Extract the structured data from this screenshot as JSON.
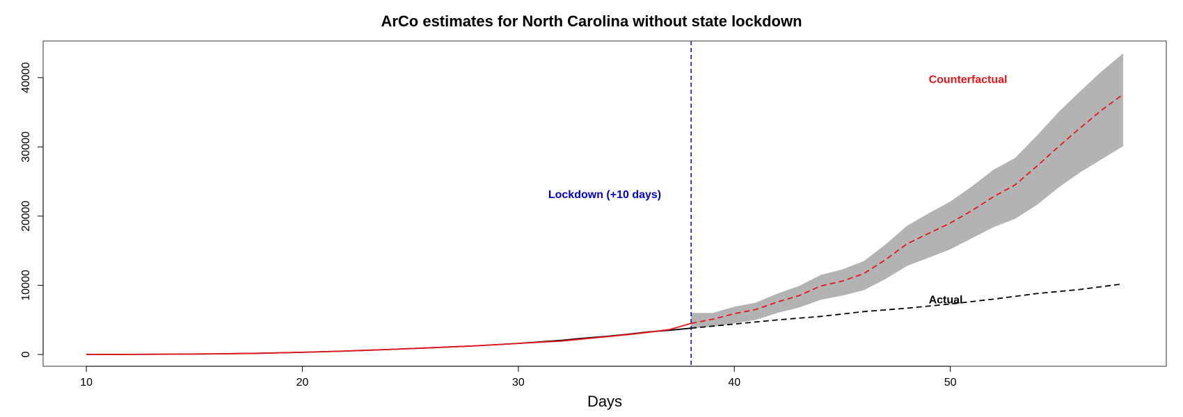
{
  "chart_data": {
    "type": "line",
    "title": "ArCo estimates for North Carolina without state lockdown",
    "xlabel": "Days",
    "ylabel": "",
    "xlim": [
      8,
      60
    ],
    "ylim": [
      -1700,
      45300
    ],
    "xticks": [
      10,
      20,
      30,
      40,
      50
    ],
    "yticks": [
      0,
      10000,
      20000,
      30000,
      40000
    ],
    "grid": false,
    "lockdown_day": 38,
    "colors": {
      "actual": "#000000",
      "counterfactual": "#e8141b",
      "band": "#b3b3b3",
      "lockdown": "#0000cc"
    },
    "series": [
      {
        "name": "Actual (pre-lockdown)",
        "style": "solid",
        "color": "#000000",
        "x": [
          10,
          12,
          14,
          16,
          18,
          20,
          22,
          24,
          26,
          28,
          30,
          32,
          33,
          34,
          35,
          36,
          37,
          38
        ],
        "y": [
          0,
          20,
          50,
          100,
          180,
          320,
          500,
          720,
          980,
          1250,
          1600,
          2050,
          2350,
          2600,
          2900,
          3250,
          3500,
          3800
        ]
      },
      {
        "name": "Counterfactual (pre-lockdown fit)",
        "style": "solid",
        "color": "#e8141b",
        "x": [
          10,
          12,
          14,
          16,
          18,
          20,
          22,
          24,
          26,
          28,
          30,
          32,
          33,
          34,
          35,
          36,
          37,
          38
        ],
        "y": [
          0,
          20,
          50,
          100,
          180,
          320,
          500,
          720,
          980,
          1250,
          1600,
          1950,
          2250,
          2550,
          2850,
          3200,
          3600,
          4500
        ]
      },
      {
        "name": "Actual",
        "style": "dashed",
        "color": "#000000",
        "x": [
          38,
          40,
          42,
          44,
          46,
          48,
          50,
          52,
          54,
          56,
          58
        ],
        "y": [
          3800,
          4400,
          5000,
          5500,
          6200,
          6700,
          7300,
          8000,
          8800,
          9400,
          10200
        ]
      },
      {
        "name": "Counterfactual",
        "style": "dashed",
        "color": "#e8141b",
        "x": [
          38,
          39,
          40,
          41,
          42,
          43,
          44,
          45,
          46,
          47,
          48,
          49,
          50,
          51,
          52,
          53,
          54,
          55,
          56,
          57,
          58
        ],
        "y": [
          4500,
          5100,
          5900,
          6500,
          7600,
          8500,
          9900,
          10600,
          11700,
          13700,
          16000,
          17500,
          19000,
          20800,
          22800,
          24500,
          27200,
          30000,
          32700,
          35300,
          37600
        ]
      }
    ],
    "band": {
      "name": "Confidence interval",
      "x": [
        38,
        39,
        40,
        41,
        42,
        43,
        44,
        45,
        46,
        47,
        48,
        49,
        50,
        51,
        52,
        53,
        54,
        55,
        56,
        57,
        58
      ],
      "lower": [
        3800,
        4000,
        4500,
        5000,
        6000,
        6800,
        7900,
        8500,
        9300,
        10900,
        12800,
        14000,
        15200,
        16800,
        18400,
        19600,
        21600,
        24100,
        26300,
        28200,
        30100
      ],
      "upper": [
        6000,
        6000,
        6900,
        7500,
        8800,
        9900,
        11500,
        12300,
        13500,
        15900,
        18600,
        20400,
        22100,
        24300,
        26700,
        28400,
        31600,
        35000,
        38000,
        40900,
        43500
      ]
    },
    "annotations": [
      {
        "text": "Lockdown (+10 days)",
        "color": "#0000cc",
        "anchor": "middle",
        "x": 34.0,
        "y": 22600
      },
      {
        "text": "Counterfactual",
        "color": "#e8141b",
        "anchor": "start",
        "x": 49.0,
        "y": 39200
      },
      {
        "text": "Actual",
        "color": "#000000",
        "anchor": "start",
        "x": 49.0,
        "y": 7400
      }
    ]
  }
}
